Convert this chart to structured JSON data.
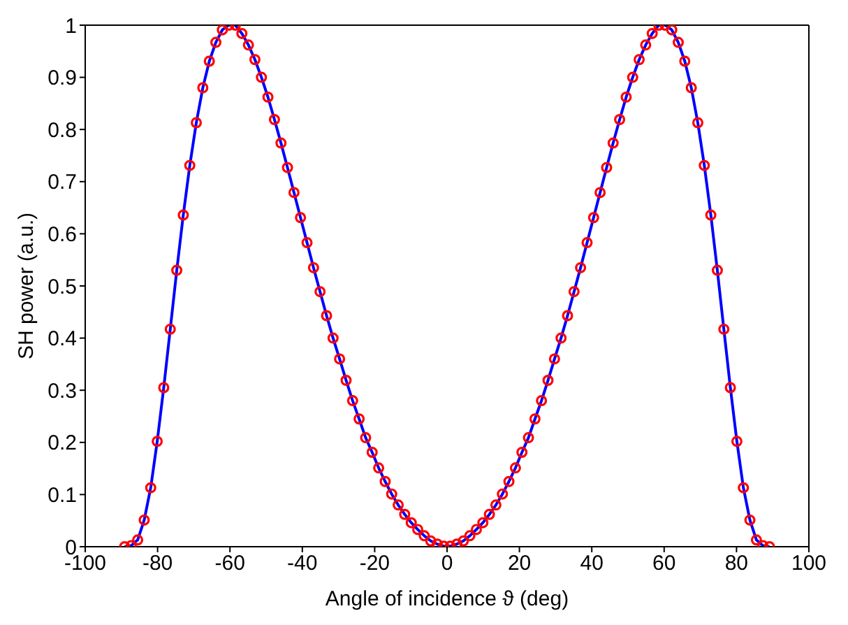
{
  "chart_data": {
    "type": "line",
    "xlabel": "Angle of incidence ϑ (deg)",
    "ylabel": "SH power (a.u.)",
    "x": [
      -89.1,
      -87.3,
      -85.5,
      -83.7,
      -81.9,
      -80.1,
      -78.3,
      -76.5,
      -74.7,
      -72.9,
      -71.1,
      -69.3,
      -67.5,
      -65.7,
      -63.9,
      -62.1,
      -60.3,
      -58.5,
      -56.7,
      -54.9,
      -53.1,
      -51.3,
      -49.5,
      -47.7,
      -45.9,
      -44.1,
      -42.3,
      -40.5,
      -38.7,
      -36.9,
      -35.1,
      -33.3,
      -31.5,
      -29.7,
      -27.9,
      -26.1,
      -24.3,
      -22.5,
      -20.7,
      -18.9,
      -17.1,
      -15.3,
      -13.5,
      -11.7,
      -9.9,
      -8.1,
      -6.3,
      -4.5,
      -2.7,
      -0.9,
      0.9,
      2.7,
      4.5,
      6.3,
      8.1,
      9.9,
      11.7,
      13.5,
      15.3,
      17.1,
      18.9,
      20.7,
      22.5,
      24.3,
      26.1,
      27.9,
      29.7,
      31.5,
      33.3,
      35.1,
      36.9,
      38.7,
      40.5,
      42.3,
      44.1,
      45.9,
      47.7,
      49.5,
      51.3,
      53.1,
      54.9,
      56.7,
      58.5,
      60.3,
      62.1,
      63.9,
      65.7,
      67.5,
      69.3,
      71.1,
      72.9,
      74.7,
      76.5,
      78.3,
      80.1,
      81.9,
      83.7,
      85.5,
      87.3,
      89.1
    ],
    "series": [
      {
        "color": "#0000ff",
        "marker": "none",
        "values": [
          0,
          0.002,
          0.013,
          0.051,
          0.113,
          0.202,
          0.305,
          0.417,
          0.53,
          0.636,
          0.731,
          0.813,
          0.88,
          0.931,
          0.967,
          0.991,
          1,
          1,
          0.984,
          0.962,
          0.934,
          0.9,
          0.862,
          0.819,
          0.774,
          0.727,
          0.679,
          0.631,
          0.583,
          0.535,
          0.489,
          0.443,
          0.4,
          0.36,
          0.319,
          0.28,
          0.245,
          0.209,
          0.181,
          0.151,
          0.125,
          0.101,
          0.08,
          0.062,
          0.046,
          0.033,
          0.021,
          0.011,
          0.005,
          0.001,
          0.001,
          0.005,
          0.011,
          0.021,
          0.033,
          0.046,
          0.062,
          0.08,
          0.101,
          0.125,
          0.151,
          0.181,
          0.209,
          0.245,
          0.28,
          0.319,
          0.36,
          0.4,
          0.443,
          0.489,
          0.535,
          0.583,
          0.631,
          0.679,
          0.727,
          0.774,
          0.819,
          0.862,
          0.9,
          0.934,
          0.962,
          0.984,
          1,
          1,
          0.991,
          0.967,
          0.931,
          0.88,
          0.813,
          0.731,
          0.636,
          0.53,
          0.417,
          0.305,
          0.202,
          0.113,
          0.051,
          0.013,
          0.002,
          0
        ]
      },
      {
        "type": "scatter",
        "color": "#ff0000",
        "marker": "circle",
        "values": [
          0,
          0.002,
          0.013,
          0.051,
          0.113,
          0.202,
          0.305,
          0.417,
          0.53,
          0.636,
          0.731,
          0.813,
          0.88,
          0.931,
          0.967,
          0.991,
          1,
          1,
          0.984,
          0.962,
          0.934,
          0.9,
          0.862,
          0.819,
          0.774,
          0.727,
          0.679,
          0.631,
          0.583,
          0.535,
          0.489,
          0.443,
          0.4,
          0.36,
          0.319,
          0.28,
          0.245,
          0.209,
          0.181,
          0.151,
          0.125,
          0.101,
          0.08,
          0.062,
          0.046,
          0.033,
          0.021,
          0.011,
          0.005,
          0.001,
          0.001,
          0.005,
          0.011,
          0.021,
          0.033,
          0.046,
          0.062,
          0.08,
          0.101,
          0.125,
          0.151,
          0.181,
          0.209,
          0.245,
          0.28,
          0.319,
          0.36,
          0.4,
          0.443,
          0.489,
          0.535,
          0.583,
          0.631,
          0.679,
          0.727,
          0.774,
          0.819,
          0.862,
          0.9,
          0.934,
          0.962,
          0.984,
          1,
          1,
          0.991,
          0.967,
          0.931,
          0.88,
          0.813,
          0.731,
          0.636,
          0.53,
          0.417,
          0.305,
          0.202,
          0.113,
          0.051,
          0.013,
          0.002,
          0
        ]
      }
    ],
    "xlim": [
      -100,
      100
    ],
    "xticks": [
      -100,
      -80,
      -60,
      -40,
      -20,
      0,
      20,
      40,
      60,
      80,
      100
    ],
    "ylim": [
      0,
      1
    ],
    "yticks": [
      0,
      0.1,
      0.2,
      0.3,
      0.4,
      0.5,
      0.6,
      0.7,
      0.8,
      0.9,
      1
    ],
    "grid": false,
    "legend": false
  }
}
